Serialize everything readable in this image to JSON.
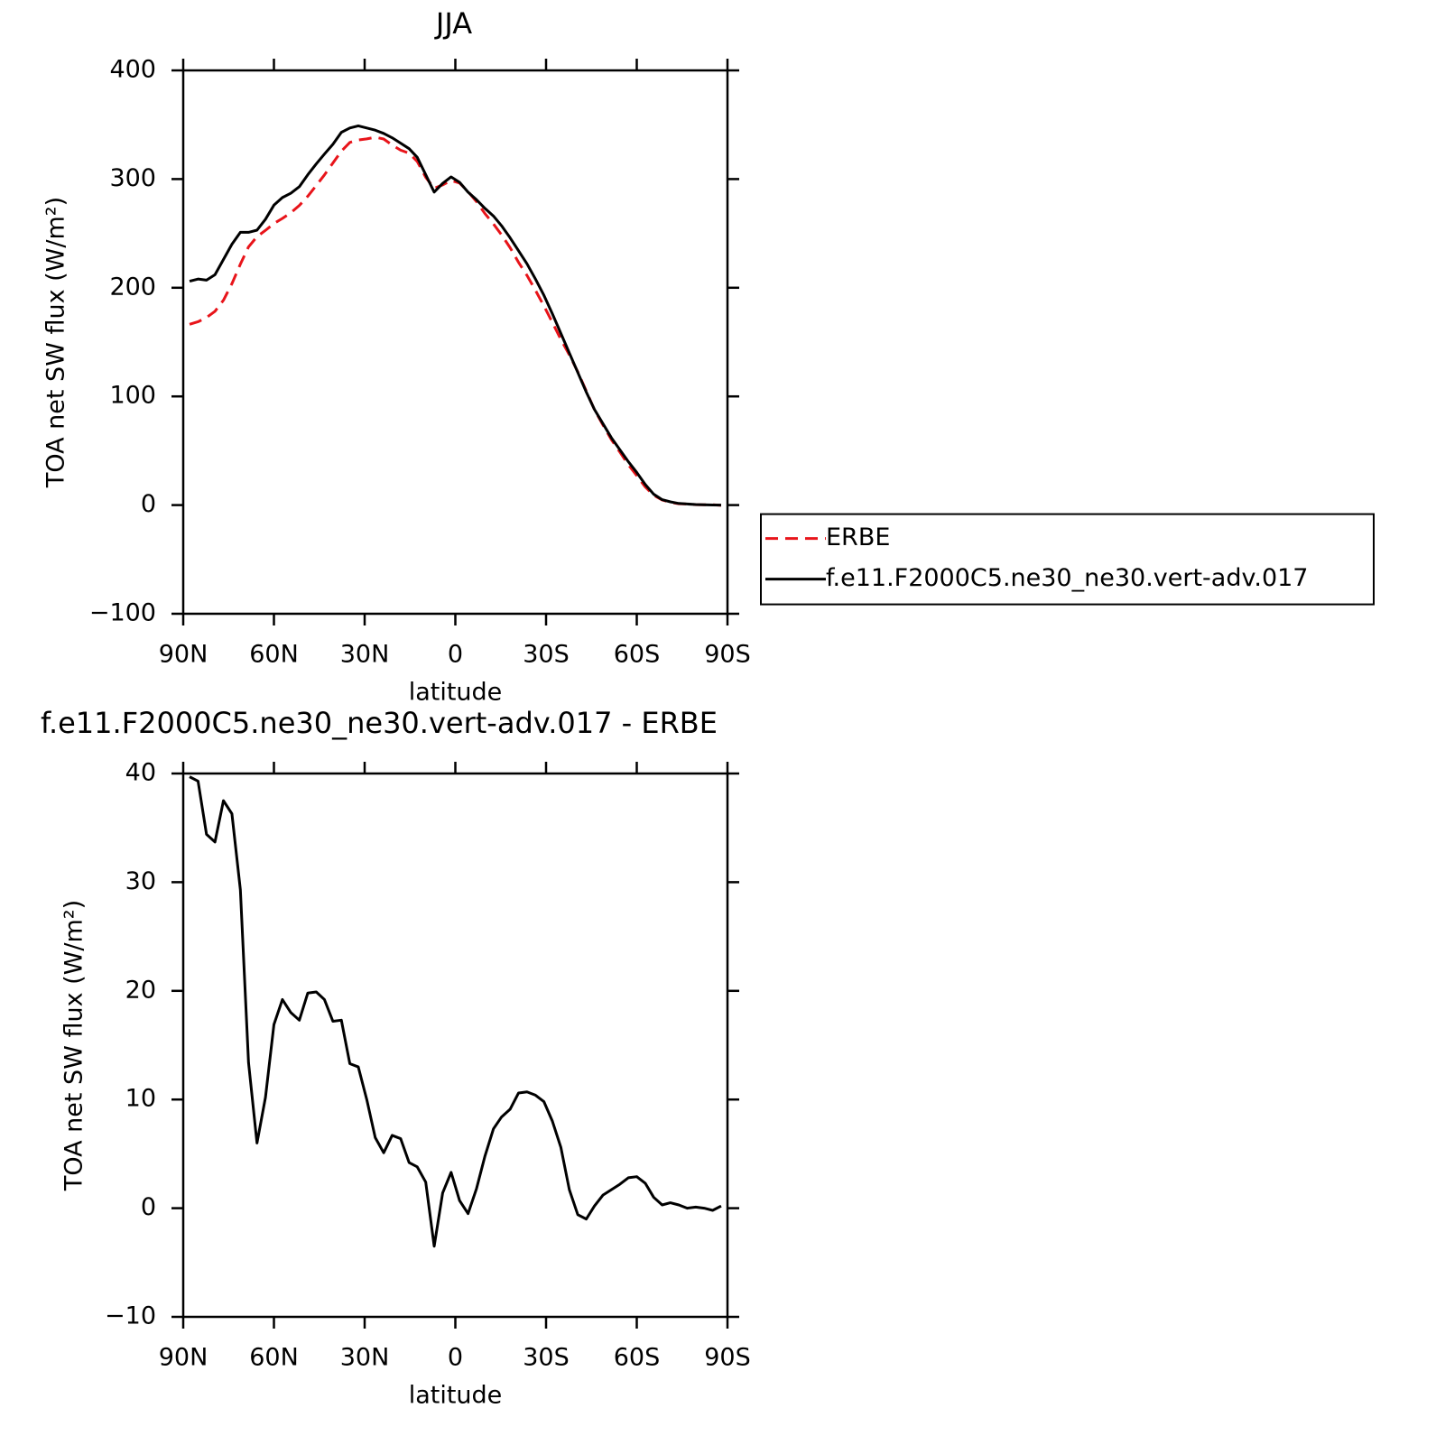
{
  "chart_data": [
    {
      "type": "line",
      "title": "JJA",
      "xlabel": "latitude",
      "ylabel": "TOA net SW flux (W/m²)",
      "x": [
        87.9,
        85.1,
        82.3,
        79.5,
        76.7,
        73.9,
        71.1,
        68.4,
        65.6,
        62.8,
        60.0,
        57.2,
        54.4,
        51.6,
        48.8,
        46.0,
        43.3,
        40.5,
        37.7,
        34.9,
        32.1,
        29.3,
        26.5,
        23.7,
        20.9,
        18.1,
        15.3,
        12.6,
        9.8,
        7.0,
        4.2,
        1.4,
        -1.4,
        -4.2,
        -7.0,
        -9.8,
        -12.6,
        -15.3,
        -18.1,
        -20.9,
        -23.7,
        -26.5,
        -29.3,
        -32.1,
        -34.9,
        -37.7,
        -40.5,
        -43.3,
        -46.0,
        -48.8,
        -51.6,
        -54.4,
        -57.2,
        -60.0,
        -62.8,
        -65.6,
        -68.4,
        -71.1,
        -73.9,
        -76.7,
        -79.5,
        -82.3,
        -85.1,
        -87.9
      ],
      "series": [
        {
          "name": "ERBE",
          "color": "#e8141a",
          "line_style": "dashed",
          "values": [
            166.3,
            168.7,
            172.6,
            178.3,
            188.5,
            203.7,
            221.7,
            237.6,
            247.0,
            252.8,
            259.1,
            263.8,
            269.0,
            275.7,
            284.2,
            294.1,
            303.8,
            314.8,
            325.7,
            333.7,
            336.0,
            337.0,
            338.5,
            336.9,
            331.3,
            326.6,
            323.8,
            316.2,
            301.6,
            291.5,
            294.6,
            298.7,
            296.3,
            288.5,
            279.2,
            268.2,
            258.7,
            248.6,
            236.9,
            223.4,
            211.3,
            197.6,
            183.2,
            168.0,
            152.4,
            138.3,
            122.6,
            105.0,
            87.8,
            73.8,
            60.3,
            48.8,
            37.2,
            27.1,
            16.7,
            9.0,
            4.7,
            2.5,
            1.2,
            1.0,
            0.4,
            0.3,
            0.3,
            -0.2
          ]
        },
        {
          "name": "f.e11.F2000C5.ne30_ne30.vert-adv.017",
          "color": "#000000",
          "line_style": "solid",
          "values": [
            206,
            208,
            207,
            212,
            226,
            240,
            251,
            251,
            253,
            263,
            276,
            283,
            287,
            293,
            304,
            314,
            323,
            332,
            343,
            347,
            349,
            347,
            345,
            342,
            338,
            333,
            328,
            320,
            304,
            288,
            296,
            302,
            297,
            288,
            281,
            273,
            266,
            257,
            246,
            234,
            222,
            208,
            193,
            176,
            158,
            140,
            122,
            104,
            88,
            75,
            62,
            51,
            40,
            30,
            19,
            10,
            5,
            3,
            1.5,
            1,
            0.5,
            0.3,
            0.1,
            0
          ]
        }
      ],
      "xlim": [
        90,
        -90
      ],
      "xticks": [
        {
          "value": 90,
          "label": "90N"
        },
        {
          "value": 60,
          "label": "60N"
        },
        {
          "value": 30,
          "label": "30N"
        },
        0,
        {
          "value": -30,
          "label": "30S"
        },
        {
          "value": -60,
          "label": "60S"
        },
        {
          "value": -90,
          "label": "90S"
        }
      ],
      "ylim": [
        -100,
        400
      ],
      "yticks": [
        {
          "value": -100,
          "label": "−100"
        },
        0,
        100,
        200,
        300,
        400
      ],
      "legend": "right"
    },
    {
      "type": "line",
      "title": "f.e11.F2000C5.ne30_ne30.vert-adv.017 - ERBE",
      "xlabel": "latitude",
      "ylabel": "TOA net SW flux (W/m²)",
      "x": [
        87.9,
        85.1,
        82.3,
        79.5,
        76.7,
        73.9,
        71.1,
        68.4,
        65.6,
        62.8,
        60.0,
        57.2,
        54.4,
        51.6,
        48.8,
        46.0,
        43.3,
        40.5,
        37.7,
        34.9,
        32.1,
        29.3,
        26.5,
        23.7,
        20.9,
        18.1,
        15.3,
        12.6,
        9.8,
        7.0,
        4.2,
        1.4,
        -1.4,
        -4.2,
        -7.0,
        -9.8,
        -12.6,
        -15.3,
        -18.1,
        -20.9,
        -23.7,
        -26.5,
        -29.3,
        -32.1,
        -34.9,
        -37.7,
        -40.5,
        -43.3,
        -46.0,
        -48.8,
        -51.6,
        -54.4,
        -57.2,
        -60.0,
        -62.8,
        -65.6,
        -68.4,
        -71.1,
        -73.9,
        -76.7,
        -79.5,
        -82.3,
        -85.1,
        -87.9
      ],
      "values": [
        39.7,
        39.3,
        34.4,
        33.7,
        37.5,
        36.3,
        29.3,
        13.4,
        6.0,
        10.2,
        16.9,
        19.2,
        18.0,
        17.3,
        19.8,
        19.9,
        19.2,
        17.2,
        17.3,
        13.3,
        13.0,
        10.0,
        6.5,
        5.1,
        6.7,
        6.4,
        4.2,
        3.8,
        2.4,
        -3.5,
        1.4,
        3.3,
        0.7,
        -0.5,
        1.8,
        4.8,
        7.3,
        8.4,
        9.1,
        10.6,
        10.7,
        10.4,
        9.8,
        8.0,
        5.6,
        1.7,
        -0.6,
        -1.0,
        0.2,
        1.2,
        1.7,
        2.2,
        2.8,
        2.9,
        2.3,
        1.0,
        0.3,
        0.5,
        0.3,
        0.0,
        0.1,
        0.0,
        -0.2,
        0.2
      ],
      "color": "#000000",
      "xlim": [
        90,
        -90
      ],
      "xticks": [
        {
          "value": 90,
          "label": "90N"
        },
        {
          "value": 60,
          "label": "60N"
        },
        {
          "value": 30,
          "label": "30N"
        },
        0,
        {
          "value": -30,
          "label": "30S"
        },
        {
          "value": -60,
          "label": "60S"
        },
        {
          "value": -90,
          "label": "90S"
        }
      ],
      "ylim": [
        -10,
        40
      ],
      "yticks": [
        {
          "value": -10,
          "label": "−10"
        },
        0,
        10,
        20,
        30,
        40
      ]
    }
  ]
}
